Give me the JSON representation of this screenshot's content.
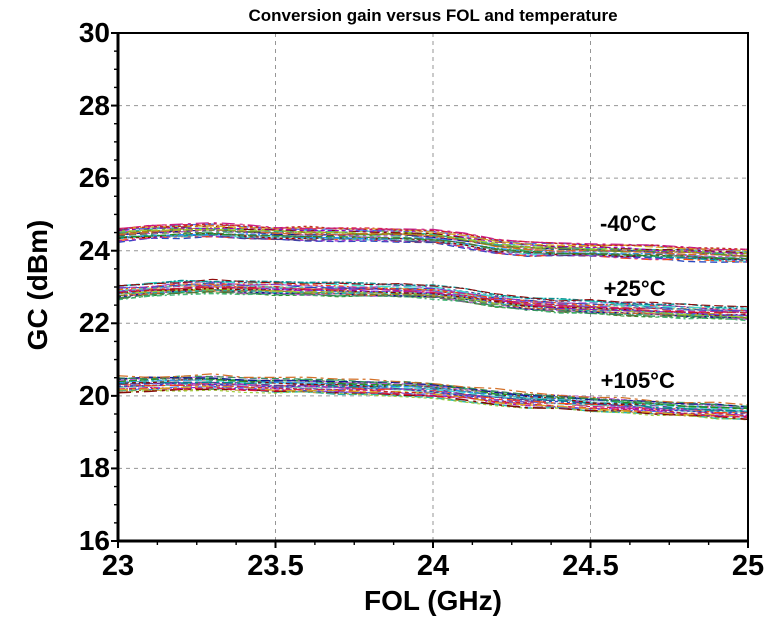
{
  "chart_data": {
    "type": "line",
    "title": "Conversion gain versus FOL and temperature",
    "xlabel": "FOL (GHz)",
    "ylabel": "GC (dBm)",
    "xlim": [
      23,
      25
    ],
    "ylim": [
      16,
      30
    ],
    "x_major_ticks": [
      23,
      23.5,
      24,
      24.5,
      25
    ],
    "x_tick_labels": [
      "23",
      "23.5",
      "24",
      "24.5",
      "25"
    ],
    "y_major_ticks": [
      30,
      28,
      26,
      24,
      22,
      20,
      18,
      16
    ],
    "y_tick_labels": [
      "30",
      "28",
      "26",
      "24",
      "22",
      "20",
      "18",
      "16"
    ],
    "x_minor_step": 0.125,
    "y_minor_step": 0.5,
    "grid": {
      "vertical_at": [
        23.5,
        24,
        24.5
      ],
      "horizontal_at": [
        18,
        20,
        22,
        24,
        26,
        28
      ],
      "style": "dashed",
      "color": "#969696"
    },
    "axis_color": "#000000",
    "x_samples": [
      23.0,
      23.1,
      23.2,
      23.3,
      23.4,
      23.5,
      23.6,
      23.7,
      23.8,
      23.9,
      24.0,
      24.1,
      24.2,
      24.3,
      24.4,
      24.5,
      24.6,
      24.7,
      24.8,
      24.9,
      25.0
    ],
    "series": [
      {
        "name": "minus40C",
        "annotation": "-40°C",
        "annotation_pos": {
          "x_ghz": 24.62,
          "y_dbm": 24.73
        },
        "center_values": [
          24.45,
          24.5,
          24.53,
          24.55,
          24.51,
          24.48,
          24.46,
          24.45,
          24.43,
          24.42,
          24.4,
          24.28,
          24.12,
          24.05,
          24.02,
          24.0,
          23.98,
          23.95,
          23.92,
          23.88,
          23.85
        ],
        "band_halfwidth": 0.19,
        "trace_count": 28
      },
      {
        "name": "plus25C",
        "annotation": "+25°C",
        "annotation_pos": {
          "x_ghz": 24.64,
          "y_dbm": 22.95
        },
        "center_values": [
          22.85,
          22.92,
          22.97,
          23.0,
          22.97,
          22.95,
          22.93,
          22.92,
          22.9,
          22.88,
          22.85,
          22.75,
          22.62,
          22.52,
          22.47,
          22.43,
          22.4,
          22.36,
          22.32,
          22.28,
          22.25
        ],
        "band_halfwidth": 0.19,
        "trace_count": 28
      },
      {
        "name": "plus105C",
        "annotation": "+105°C",
        "annotation_pos": {
          "x_ghz": 24.65,
          "y_dbm": 20.42
        },
        "center_values": [
          20.3,
          20.33,
          20.35,
          20.35,
          20.32,
          20.3,
          20.28,
          20.25,
          20.22,
          20.2,
          20.15,
          20.05,
          19.95,
          19.88,
          19.83,
          19.78,
          19.73,
          19.68,
          19.63,
          19.59,
          19.55
        ],
        "band_halfwidth": 0.21,
        "trace_count": 28
      }
    ],
    "trace_palette": [
      "#1f3fbf",
      "#0b0b8f",
      "#c02020",
      "#1e8f1e",
      "#9400d3",
      "#008b8b",
      "#b8860b",
      "#ff4500",
      "#2e8b57",
      "#c71585",
      "#556b2f",
      "#4169e1",
      "#8b0000",
      "#20b2aa",
      "#9932cc",
      "#d2691e",
      "#6a5acd",
      "#3cb371",
      "#dc143c",
      "#5f9ea0",
      "#9acd32",
      "#483d8b",
      "#cd5c5c",
      "#66cdaa",
      "#ba55d3",
      "#daa520",
      "#1e90ff",
      "#800000",
      "#40e0d0",
      "#6b8e23"
    ],
    "dash_patterns": [
      "7 4",
      "10 4 3 4",
      "4 3",
      "12 5",
      "5 3 2 3",
      "8 3",
      "3 3",
      "13 5 3 5",
      "6 2 2 2",
      "9 4"
    ]
  }
}
